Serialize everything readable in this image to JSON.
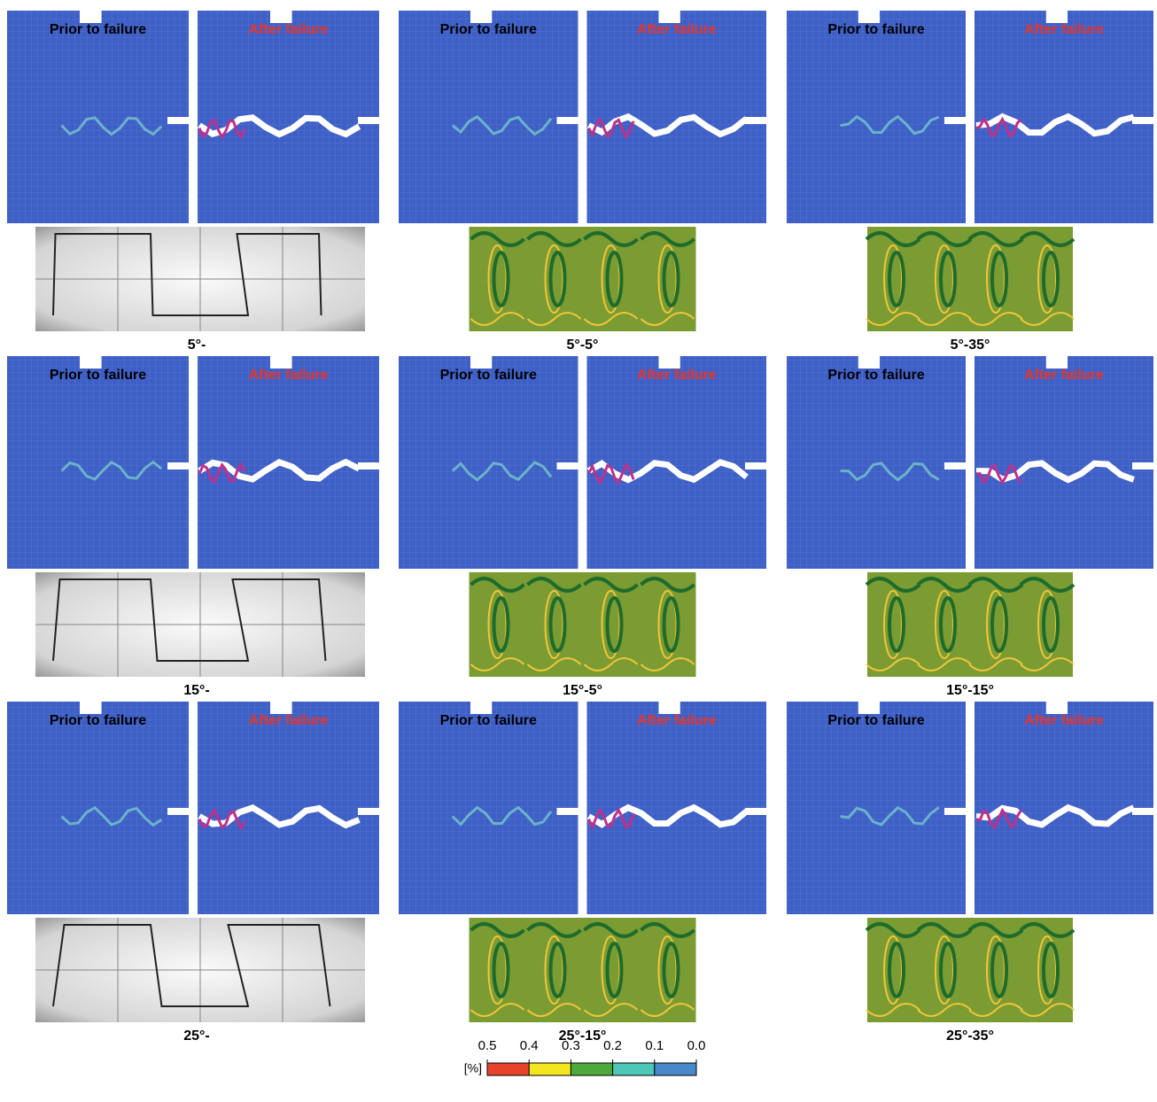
{
  "panels": [
    {
      "prior_label": "Prior to failure",
      "after_label": "After failure",
      "caption": "5°-"
    },
    {
      "prior_label": "Prior to failure",
      "after_label": "After failure",
      "caption": "5°-5°"
    },
    {
      "prior_label": "Prior to failure",
      "after_label": "After failure",
      "caption": "5°-35°"
    },
    {
      "prior_label": "Prior to failure",
      "after_label": "After failure",
      "caption": "15°-"
    },
    {
      "prior_label": "Prior to failure",
      "after_label": "After failure",
      "caption": "15°-5°"
    },
    {
      "prior_label": "Prior to failure",
      "after_label": "After failure",
      "caption": "15°-15°"
    },
    {
      "prior_label": "Prior to failure",
      "after_label": "After failure",
      "caption": "25°-"
    },
    {
      "prior_label": "Prior to failure",
      "after_label": "After failure",
      "caption": "25°-15°"
    },
    {
      "prior_label": "Prior to failure",
      "after_label": "After failure",
      "caption": "25°-35°"
    }
  ],
  "colorbar": {
    "unit": "[%]",
    "lim": [
      0,
      0.5
    ],
    "ticks": [
      0.5,
      0.4,
      0.3,
      0.2,
      0.1,
      {
        "value": 0,
        "label": "0.0"
      }
    ],
    "colors": [
      "#e8432a",
      "#f4e61c",
      "#4caa3c",
      "#4cc7b8",
      "#4a88cc"
    ]
  }
}
